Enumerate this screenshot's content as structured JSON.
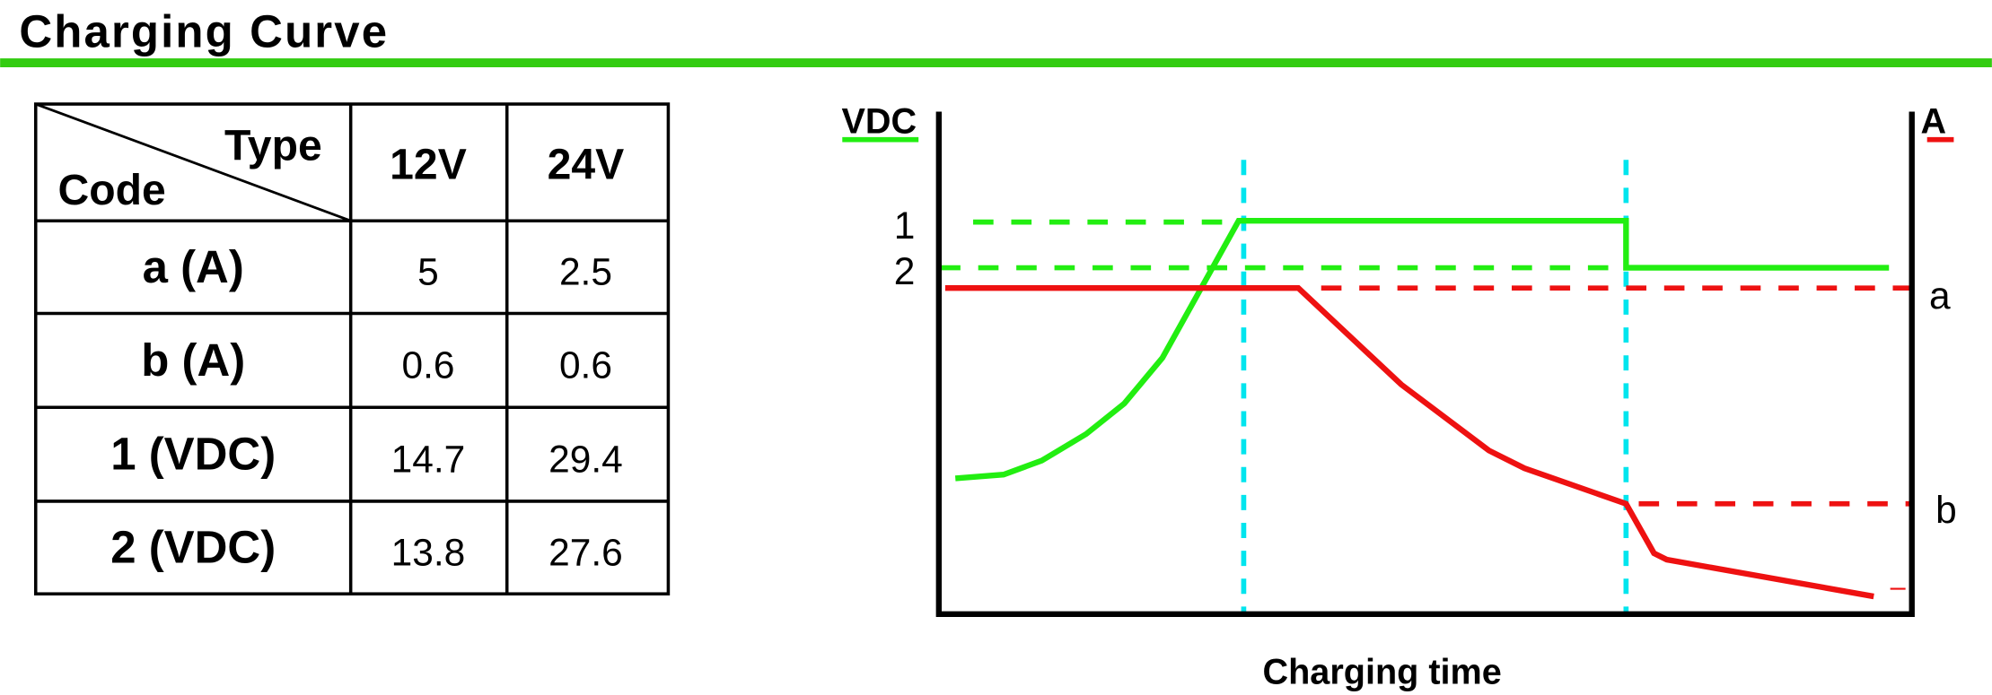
{
  "header": {
    "title": "Charging Curve"
  },
  "table": {
    "corner": {
      "type": "Type",
      "code": "Code"
    },
    "columns": [
      "12V",
      "24V"
    ],
    "rows": [
      [
        "a (A)",
        "5",
        "2.5"
      ],
      [
        "b (A)",
        "0.6",
        "0.6"
      ],
      [
        "1 (VDC)",
        "14.7",
        "29.4"
      ],
      [
        "2 (VDC)",
        "13.8",
        "27.6"
      ]
    ]
  },
  "diagram": {
    "left_axis": "VDC",
    "right_axis": "A",
    "x_axis": "Charging time",
    "left_labels": [
      "1",
      "2"
    ],
    "right_labels": [
      "a",
      "b"
    ]
  }
}
